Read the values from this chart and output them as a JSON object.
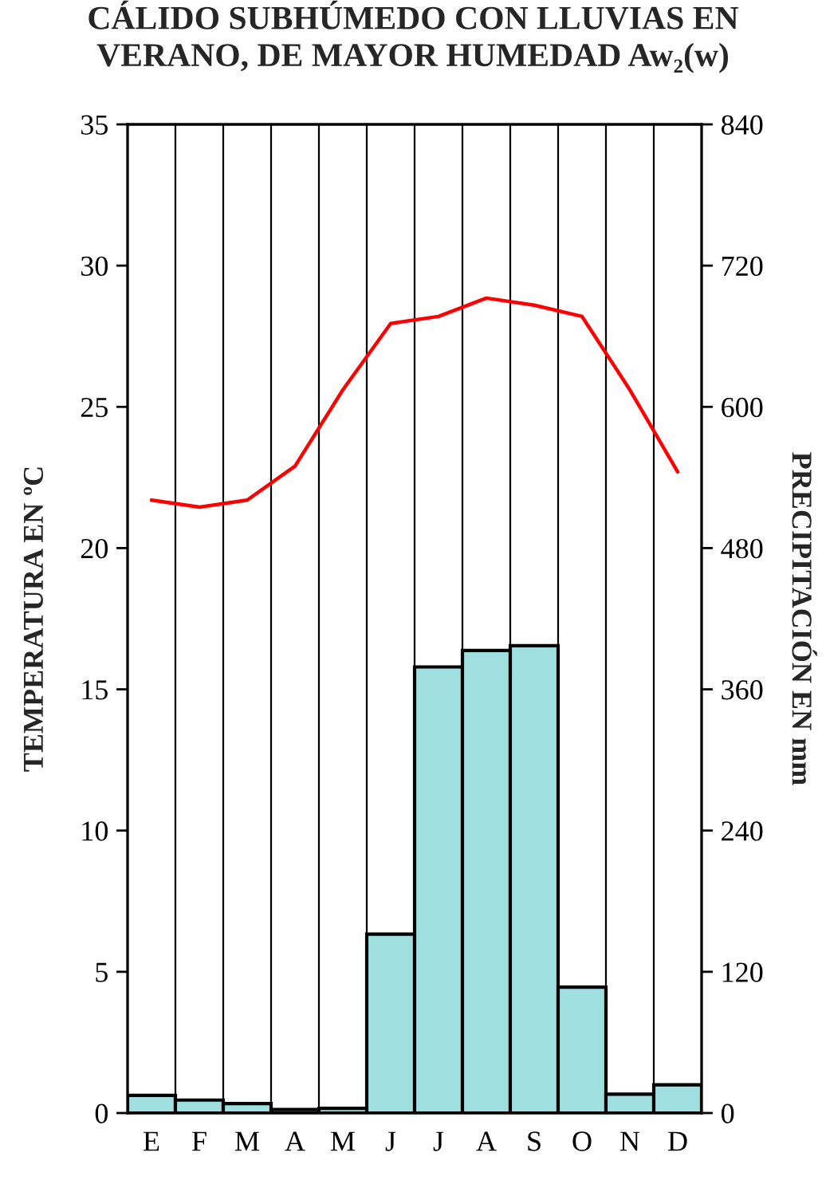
{
  "chart_data": {
    "type": "bar",
    "title": "CÁLIDO SUBHÚMEDO CON LLUVIAS EN\nVERANO, DE MAYOR HUMEDAD Aw₂(w)",
    "ylabel": "TEMPERATURA EN ºC",
    "y2label": "PRECIPITACIÓN EN mm",
    "categories": [
      "E",
      "F",
      "M",
      "A",
      "M",
      "J",
      "J",
      "A",
      "S",
      "O",
      "N",
      "D"
    ],
    "series": [
      {
        "axis": "y2",
        "color": "#a0dfe0",
        "values": [
          15,
          11,
          8,
          3,
          4,
          152,
          379,
          393,
          397,
          107,
          16,
          24
        ]
      },
      {
        "type": "line",
        "axis": "y",
        "color": "#ff0000",
        "values": [
          21.7,
          21.45,
          21.7,
          22.9,
          25.6,
          27.95,
          28.2,
          28.85,
          28.6,
          28.2,
          25.6,
          22.7
        ]
      }
    ],
    "ylim": [
      0,
      35
    ],
    "yticks": [
      0,
      5,
      10,
      15,
      20,
      25,
      30,
      35
    ],
    "y2lim": [
      0,
      840
    ],
    "y2ticks": [
      0,
      120,
      240,
      360,
      480,
      600,
      720,
      840
    ],
    "grid": "x",
    "marker": "none",
    "line_style": "solid"
  }
}
